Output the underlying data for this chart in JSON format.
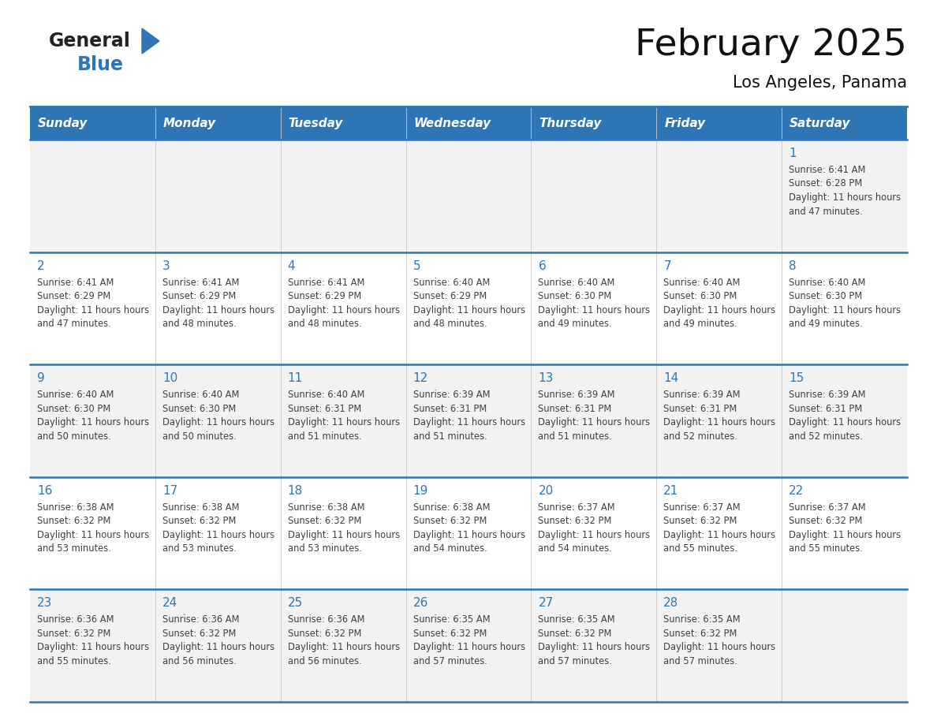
{
  "title": "February 2025",
  "subtitle": "Los Angeles, Panama",
  "days_of_week": [
    "Sunday",
    "Monday",
    "Tuesday",
    "Wednesday",
    "Thursday",
    "Friday",
    "Saturday"
  ],
  "header_bg": "#2E75B6",
  "header_text": "#FFFFFF",
  "row_bg_light": "#F2F2F2",
  "row_bg_white": "#FFFFFF",
  "day_num_color": "#2E75B6",
  "text_color": "#404040",
  "line_color": "#2E75B6",
  "calendar": [
    [
      null,
      null,
      null,
      null,
      null,
      null,
      {
        "day": "1",
        "sunrise": "6:41 AM",
        "sunset": "6:28 PM",
        "daylight": "11 hours and 47 minutes."
      }
    ],
    [
      {
        "day": "2",
        "sunrise": "6:41 AM",
        "sunset": "6:29 PM",
        "daylight": "11 hours and 47 minutes."
      },
      {
        "day": "3",
        "sunrise": "6:41 AM",
        "sunset": "6:29 PM",
        "daylight": "11 hours and 48 minutes."
      },
      {
        "day": "4",
        "sunrise": "6:41 AM",
        "sunset": "6:29 PM",
        "daylight": "11 hours and 48 minutes."
      },
      {
        "day": "5",
        "sunrise": "6:40 AM",
        "sunset": "6:29 PM",
        "daylight": "11 hours and 48 minutes."
      },
      {
        "day": "6",
        "sunrise": "6:40 AM",
        "sunset": "6:30 PM",
        "daylight": "11 hours and 49 minutes."
      },
      {
        "day": "7",
        "sunrise": "6:40 AM",
        "sunset": "6:30 PM",
        "daylight": "11 hours and 49 minutes."
      },
      {
        "day": "8",
        "sunrise": "6:40 AM",
        "sunset": "6:30 PM",
        "daylight": "11 hours and 49 minutes."
      }
    ],
    [
      {
        "day": "9",
        "sunrise": "6:40 AM",
        "sunset": "6:30 PM",
        "daylight": "11 hours and 50 minutes."
      },
      {
        "day": "10",
        "sunrise": "6:40 AM",
        "sunset": "6:30 PM",
        "daylight": "11 hours and 50 minutes."
      },
      {
        "day": "11",
        "sunrise": "6:40 AM",
        "sunset": "6:31 PM",
        "daylight": "11 hours and 51 minutes."
      },
      {
        "day": "12",
        "sunrise": "6:39 AM",
        "sunset": "6:31 PM",
        "daylight": "11 hours and 51 minutes."
      },
      {
        "day": "13",
        "sunrise": "6:39 AM",
        "sunset": "6:31 PM",
        "daylight": "11 hours and 51 minutes."
      },
      {
        "day": "14",
        "sunrise": "6:39 AM",
        "sunset": "6:31 PM",
        "daylight": "11 hours and 52 minutes."
      },
      {
        "day": "15",
        "sunrise": "6:39 AM",
        "sunset": "6:31 PM",
        "daylight": "11 hours and 52 minutes."
      }
    ],
    [
      {
        "day": "16",
        "sunrise": "6:38 AM",
        "sunset": "6:32 PM",
        "daylight": "11 hours and 53 minutes."
      },
      {
        "day": "17",
        "sunrise": "6:38 AM",
        "sunset": "6:32 PM",
        "daylight": "11 hours and 53 minutes."
      },
      {
        "day": "18",
        "sunrise": "6:38 AM",
        "sunset": "6:32 PM",
        "daylight": "11 hours and 53 minutes."
      },
      {
        "day": "19",
        "sunrise": "6:38 AM",
        "sunset": "6:32 PM",
        "daylight": "11 hours and 54 minutes."
      },
      {
        "day": "20",
        "sunrise": "6:37 AM",
        "sunset": "6:32 PM",
        "daylight": "11 hours and 54 minutes."
      },
      {
        "day": "21",
        "sunrise": "6:37 AM",
        "sunset": "6:32 PM",
        "daylight": "11 hours and 55 minutes."
      },
      {
        "day": "22",
        "sunrise": "6:37 AM",
        "sunset": "6:32 PM",
        "daylight": "11 hours and 55 minutes."
      }
    ],
    [
      {
        "day": "23",
        "sunrise": "6:36 AM",
        "sunset": "6:32 PM",
        "daylight": "11 hours and 55 minutes."
      },
      {
        "day": "24",
        "sunrise": "6:36 AM",
        "sunset": "6:32 PM",
        "daylight": "11 hours and 56 minutes."
      },
      {
        "day": "25",
        "sunrise": "6:36 AM",
        "sunset": "6:32 PM",
        "daylight": "11 hours and 56 minutes."
      },
      {
        "day": "26",
        "sunrise": "6:35 AM",
        "sunset": "6:32 PM",
        "daylight": "11 hours and 57 minutes."
      },
      {
        "day": "27",
        "sunrise": "6:35 AM",
        "sunset": "6:32 PM",
        "daylight": "11 hours and 57 minutes."
      },
      {
        "day": "28",
        "sunrise": "6:35 AM",
        "sunset": "6:32 PM",
        "daylight": "11 hours and 57 minutes."
      },
      null
    ]
  ]
}
